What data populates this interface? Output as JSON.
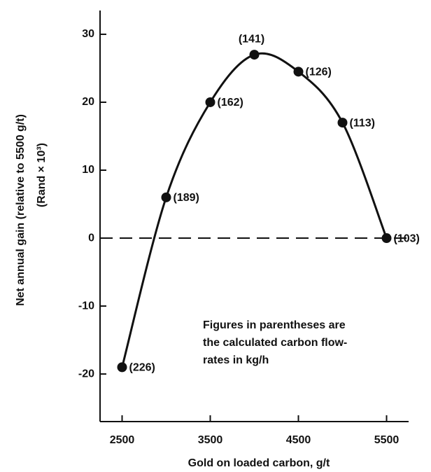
{
  "chart_data": {
    "type": "line",
    "ylabel": [
      "Net annual gain (relative to 5500 g/t)",
      "(Rand × 10³)"
    ],
    "xlabel": "Gold on loaded carbon, g/t",
    "annotation": [
      "Figures in parentheses are",
      "the calculated carbon flow-",
      "rates in kg/h"
    ],
    "x": [
      2500,
      3000,
      3500,
      4000,
      4500,
      5000,
      5500
    ],
    "series": [
      {
        "color": "#111111",
        "values": [
          -19,
          6,
          20,
          27,
          24.5,
          17,
          0
        ],
        "point_labels": [
          "(226)",
          "(189)",
          "(162)",
          "(141)",
          "(126)",
          "(113)",
          "(103)"
        ]
      }
    ],
    "xlim": [
      2250,
      5750
    ],
    "xticks": [
      2500,
      3500,
      4500,
      5500
    ],
    "ylim": [
      -27,
      33.5
    ],
    "yticks": [
      -20,
      -10,
      0,
      10,
      20,
      30
    ],
    "hline": 0
  }
}
